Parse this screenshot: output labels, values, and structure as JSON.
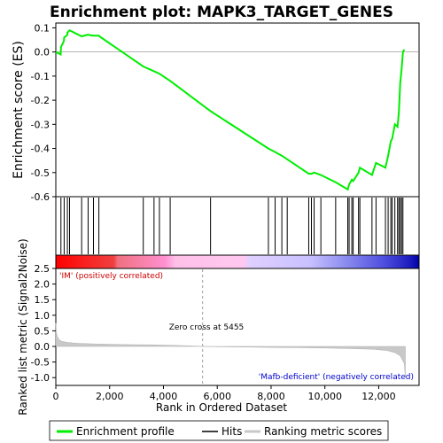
{
  "colors": {
    "es_curve": "#00ee00",
    "hits": "#000000",
    "metric_fill": "#c8c8c8",
    "zero_cross_line": "#a0a0a0",
    "pos_label": "#cc0000",
    "neg_label": "#0000cc"
  },
  "chart_data": [
    {
      "type": "line",
      "panel": "enrichment-profile",
      "title": "Enrichment plot: MAPK3_TARGET_GENES",
      "ylabel": "Enrichment score (ES)",
      "xlim": [
        0,
        13500
      ],
      "ylim": [
        -0.6,
        0.12
      ],
      "yticks": [
        0.1,
        0.0,
        -0.1,
        -0.2,
        -0.3,
        -0.4,
        -0.5,
        -0.6
      ],
      "ytick_labels": [
        "0.1",
        "0.0",
        "-0.1",
        "-0.2",
        "-0.3",
        "-0.4",
        "-0.5",
        "-0.6"
      ],
      "series": [
        {
          "name": "Enrichment profile",
          "x": [
            0,
            180,
            190,
            300,
            310,
            420,
            430,
            510,
            960,
            1200,
            1250,
            1400,
            1600,
            1620,
            3250,
            3650,
            3850,
            4250,
            5750,
            7900,
            8150,
            8400,
            8600,
            9400,
            9500,
            9600,
            9850,
            10400,
            10850,
            10900,
            11000,
            11050,
            11250,
            11300,
            11750,
            11900,
            12250,
            12350,
            12450,
            12500,
            12600,
            12700,
            12750,
            12800,
            12850,
            12900,
            12950
          ],
          "y": [
            0.0,
            -0.01,
            0.02,
            0.045,
            0.06,
            0.07,
            0.08,
            0.09,
            0.065,
            0.072,
            0.07,
            0.068,
            0.068,
            0.065,
            -0.06,
            -0.08,
            -0.09,
            -0.12,
            -0.245,
            -0.4,
            -0.415,
            -0.43,
            -0.445,
            -0.505,
            -0.505,
            -0.5,
            -0.51,
            -0.54,
            -0.57,
            -0.55,
            -0.53,
            -0.535,
            -0.5,
            -0.48,
            -0.51,
            -0.46,
            -0.48,
            -0.43,
            -0.37,
            -0.36,
            -0.3,
            -0.31,
            -0.25,
            -0.13,
            -0.07,
            0.0,
            0.01
          ]
        }
      ]
    },
    {
      "type": "scatter",
      "panel": "hits",
      "series": [
        {
          "name": "Hits",
          "x": [
            190,
            310,
            430,
            510,
            960,
            1200,
            1400,
            1600,
            3250,
            3650,
            3850,
            4250,
            5750,
            7900,
            8150,
            8400,
            8600,
            9400,
            9500,
            9600,
            9850,
            10400,
            10850,
            10900,
            11000,
            11050,
            11250,
            11300,
            11750,
            11900,
            12250,
            12350,
            12450,
            12500,
            12600,
            12700,
            12750,
            12800,
            12850,
            12900
          ]
        }
      ]
    },
    {
      "type": "area",
      "panel": "ranked-list-metric",
      "series": [
        {
          "name": "Ranking metric scores",
          "x": [
            0,
            20,
            60,
            120,
            200,
            400,
            800,
            1500,
            2500,
            3500,
            4500,
            5200,
            5455,
            6000,
            7000,
            8000,
            9000,
            10000,
            11000,
            11800,
            12300,
            12600,
            12800,
            12950,
            12990
          ],
          "y": [
            0.75,
            0.45,
            0.32,
            0.22,
            0.17,
            0.13,
            0.1,
            0.08,
            0.06,
            0.05,
            0.03,
            0.01,
            0.0,
            -0.01,
            -0.02,
            -0.03,
            -0.04,
            -0.05,
            -0.07,
            -0.09,
            -0.13,
            -0.2,
            -0.3,
            -0.55,
            -1.0
          ]
        }
      ],
      "xlabel": "Rank in Ordered Dataset",
      "ylabel": "Ranked list metric (Signal2Noise)",
      "xlim": [
        0,
        13500
      ],
      "ylim": [
        -1.25,
        2.5
      ],
      "xticks": [
        0,
        2000,
        4000,
        6000,
        8000,
        10000,
        12000
      ],
      "xtick_labels": [
        "0",
        "2,000",
        "4,000",
        "6,000",
        "8,000",
        "10,000",
        "12,000"
      ],
      "yticks": [
        2.5,
        2.0,
        1.5,
        1.0,
        0.5,
        0.0,
        -0.5,
        -1.0
      ],
      "ytick_labels": [
        "2.5",
        "2.0",
        "1.5",
        "1.0",
        "0.5",
        "0.0",
        "-0.5",
        "-1.0"
      ],
      "zero_cross_rank": 5455,
      "annotations": {
        "zero_cross": "Zero cross at 5455",
        "positive": "'IM' (positively correlated)",
        "negative": "'Mafb-deficient' (negatively correlated)"
      }
    }
  ],
  "legend": {
    "items": [
      {
        "label": "Enrichment profile",
        "color": "#00ee00"
      },
      {
        "label": "Hits",
        "color": "#000000"
      },
      {
        "label": "Ranking metric scores",
        "color": "#c8c8c8"
      }
    ]
  }
}
